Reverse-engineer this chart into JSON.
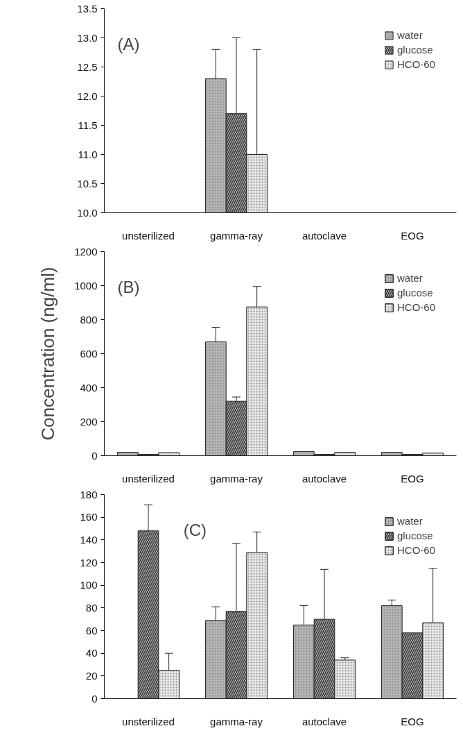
{
  "chart_data": [
    {
      "type": "bar",
      "categories": [
        "unsterilized",
        "gamma-ray",
        "autoclave",
        "EOG"
      ],
      "ylim": [
        10.0,
        13.5
      ],
      "yticks": [
        {
          "value": 10,
          "label": "10.0"
        },
        {
          "value": 10.5,
          "label": "10.5"
        },
        {
          "value": 11,
          "label": "11.0"
        },
        {
          "value": 11.5,
          "label": "11.5"
        },
        {
          "value": 12,
          "label": "12.0"
        },
        {
          "value": 12.5,
          "label": "12.5"
        },
        {
          "value": 13,
          "label": "13.0"
        },
        {
          "value": 13.5,
          "label": "13.5"
        }
      ],
      "annotations": [
        "(A)"
      ],
      "legend": "top right",
      "grid": false,
      "series": [
        {
          "name": "water",
          "color": "#b4b4b4",
          "values": [
            null,
            12.3,
            null,
            null
          ],
          "errors": [
            null,
            [
              12.3,
              12.8
            ],
            null,
            null
          ]
        },
        {
          "name": "glucose",
          "color": "#444444",
          "values": [
            null,
            11.7,
            null,
            null
          ],
          "errors": [
            null,
            [
              11.7,
              13.0
            ],
            null,
            null
          ]
        },
        {
          "name": "HCO-60",
          "color": "#e6e6e6",
          "values": [
            null,
            11.0,
            null,
            null
          ],
          "errors": [
            null,
            [
              11.0,
              12.8
            ],
            null,
            null
          ]
        }
      ]
    },
    {
      "type": "bar",
      "categories": [
        "unsterilized",
        "gamma-ray",
        "autoclave",
        "EOG"
      ],
      "ylabel": "Concentration (ng/ml)",
      "ylim": [
        0,
        1200
      ],
      "yticks": [
        0,
        200,
        400,
        600,
        800,
        1000,
        1200
      ],
      "annotations": [
        "(B)"
      ],
      "legend": "top right",
      "grid": false,
      "series": [
        {
          "name": "water",
          "color": "#b4b4b4",
          "values": [
            20,
            670,
            25,
            20
          ],
          "errors": [
            null,
            [
              670,
              755
            ],
            null,
            null
          ]
        },
        {
          "name": "glucose",
          "color": "#444444",
          "values": [
            8,
            320,
            8,
            8
          ],
          "errors": [
            null,
            [
              320,
              345
            ],
            null,
            null
          ]
        },
        {
          "name": "HCO-60",
          "color": "#e6e6e6",
          "values": [
            18,
            875,
            20,
            15
          ],
          "errors": [
            null,
            [
              875,
              995
            ],
            null,
            null
          ]
        }
      ]
    },
    {
      "type": "bar",
      "categories": [
        "unsterilized",
        "gamma-ray",
        "autoclave",
        "EOG"
      ],
      "ylim": [
        0,
        180
      ],
      "yticks": [
        0,
        20,
        40,
        60,
        80,
        100,
        120,
        140,
        160,
        180
      ],
      "annotations": [
        "(C)"
      ],
      "legend": "top right",
      "grid": false,
      "series": [
        {
          "name": "water",
          "color": "#b4b4b4",
          "values": [
            null,
            69,
            65,
            82
          ],
          "errors": [
            null,
            [
              69,
              81
            ],
            [
              65,
              82
            ],
            [
              82,
              87
            ]
          ]
        },
        {
          "name": "glucose",
          "color": "#444444",
          "values": [
            148,
            77,
            70,
            58
          ],
          "errors": [
            [
              148,
              171
            ],
            [
              77,
              137
            ],
            [
              70,
              114
            ],
            null
          ]
        },
        {
          "name": "HCO-60",
          "color": "#e6e6e6",
          "values": [
            25,
            129,
            34,
            67
          ],
          "errors": [
            [
              25,
              40
            ],
            [
              129,
              147
            ],
            [
              34,
              36
            ],
            [
              67,
              115
            ]
          ]
        }
      ]
    }
  ]
}
